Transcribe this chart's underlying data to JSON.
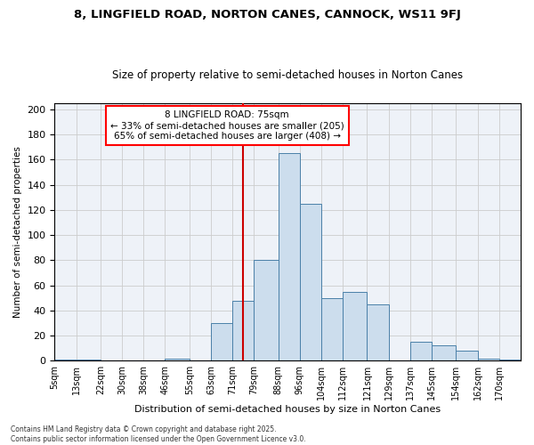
{
  "title1": "8, LINGFIELD ROAD, NORTON CANES, CANNOCK, WS11 9FJ",
  "title2": "Size of property relative to semi-detached houses in Norton Canes",
  "xlabel": "Distribution of semi-detached houses by size in Norton Canes",
  "ylabel": "Number of semi-detached properties",
  "footnote": "Contains HM Land Registry data © Crown copyright and database right 2025.\nContains public sector information licensed under the Open Government Licence v3.0.",
  "annotation_title": "8 LINGFIELD ROAD: 75sqm",
  "annotation_line1": "← 33% of semi-detached houses are smaller (205)",
  "annotation_line2": "65% of semi-detached houses are larger (408) →",
  "property_size": 75,
  "bar_color": "#ccdded",
  "bar_edge_color": "#4a80a8",
  "redline_color": "#cc0000",
  "grid_color": "#cccccc",
  "bg_color": "#eef2f8",
  "tick_labels": [
    "5sqm",
    "13sqm",
    "22sqm",
    "30sqm",
    "38sqm",
    "46sqm",
    "55sqm",
    "63sqm",
    "71sqm",
    "79sqm",
    "88sqm",
    "96sqm",
    "104sqm",
    "112sqm",
    "121sqm",
    "129sqm",
    "137sqm",
    "145sqm",
    "154sqm",
    "162sqm",
    "170sqm"
  ],
  "bin_lefts": [
    5,
    13,
    22,
    30,
    38,
    46,
    55,
    63,
    71,
    79,
    88,
    96,
    104,
    112,
    121,
    129,
    137,
    145,
    154,
    162,
    170
  ],
  "bin_widths": [
    8,
    9,
    8,
    8,
    8,
    9,
    8,
    8,
    8,
    9,
    8,
    8,
    8,
    9,
    8,
    8,
    8,
    9,
    8,
    8,
    8
  ],
  "values": [
    1,
    1,
    0,
    0,
    0,
    2,
    0,
    30,
    48,
    80,
    165,
    125,
    50,
    55,
    45,
    0,
    15,
    12,
    8,
    2,
    1
  ],
  "ylim": [
    0,
    205
  ],
  "yticks": [
    0,
    20,
    40,
    60,
    80,
    100,
    120,
    140,
    160,
    180,
    200
  ]
}
